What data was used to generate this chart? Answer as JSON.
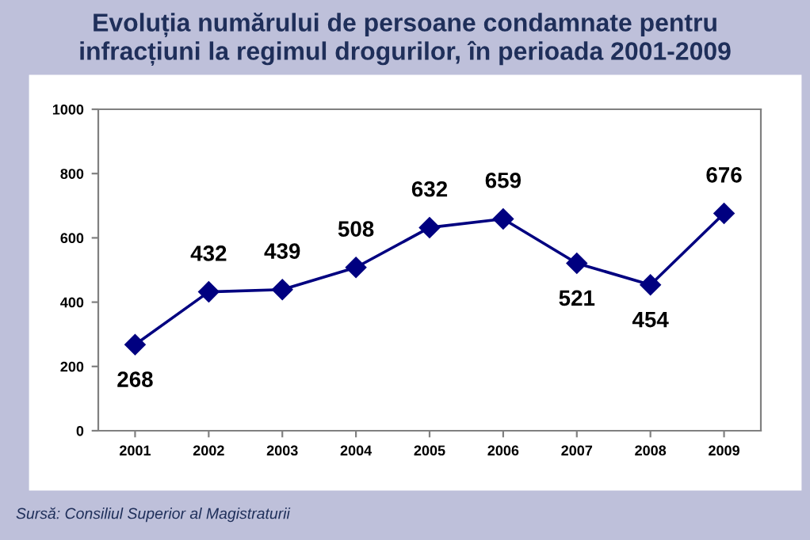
{
  "chart_data": {
    "type": "line",
    "title": "Evoluția numărului de persoane condamnate pentru\ninfracțiuni la regimul drogurilor, în perioada 2001-2009",
    "categories": [
      "2001",
      "2002",
      "2003",
      "2004",
      "2005",
      "2006",
      "2007",
      "2008",
      "2009"
    ],
    "series": [
      {
        "color": "#000080",
        "values": [
          268,
          432,
          439,
          508,
          632,
          659,
          521,
          454,
          676
        ]
      }
    ],
    "ylim": [
      0,
      1000
    ],
    "yticks": [
      0,
      200,
      400,
      600,
      800,
      1000
    ],
    "grid": false,
    "legend": false,
    "marker": "diamond",
    "line_style": "solid",
    "data_labels": true,
    "annotations": [
      "Sursă: Consiliul Superior al Magistraturii"
    ]
  }
}
